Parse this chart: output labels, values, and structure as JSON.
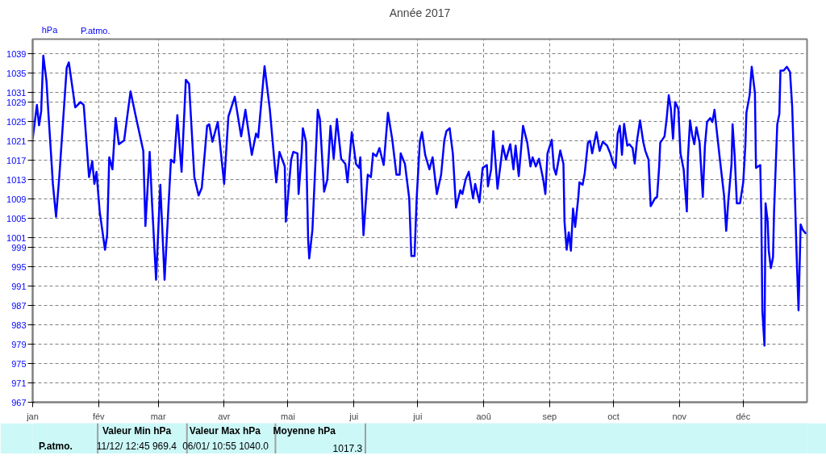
{
  "chart_data": {
    "type": "line",
    "title": "Année 2017",
    "ylabel": "hPa",
    "x": [
      "2017-01-01",
      "2017-01-03",
      "2017-01-04",
      "2017-01-05",
      "2017-01-06",
      "2017-01-07T12:00",
      "2017-01-08T12:00",
      "2017-01-10",
      "2017-01-10T12:00",
      "2017-01-12",
      "2017-01-13T12:00",
      "2017-01-17",
      "2017-01-18",
      "2017-01-21",
      "2017-01-23T12:00",
      "2017-01-25",
      "2017-01-27T12:00",
      "2017-01-29",
      "2017-01-30",
      "2017-01-31",
      "2017-02-01T12:00",
      "2017-02-04",
      "2017-02-05",
      "2017-02-06",
      "2017-02-07T12:00",
      "2017-02-09",
      "2017-02-10T12:00",
      "2017-02-13",
      "2017-02-16",
      "2017-02-18T12:00",
      "2017-02-22",
      "2017-02-23",
      "2017-02-25",
      "2017-02-26",
      "2017-02-28",
      "2017-03-02",
      "2017-03-04",
      "2017-03-07",
      "2017-03-08T12:00",
      "2017-03-10",
      "2017-03-12",
      "2017-03-14",
      "2017-03-15T12:00",
      "2017-03-18",
      "2017-03-20",
      "2017-03-21T12:00",
      "2017-03-24",
      "2017-03-25",
      "2017-03-26T12:00",
      "2017-03-29",
      "2017-04-01",
      "2017-04-03",
      "2017-04-06",
      "2017-04-09",
      "2017-04-11",
      "2017-04-14",
      "2017-04-16",
      "2017-04-17",
      "2017-04-20",
      "2017-04-22T12:00",
      "2017-04-25T12:00",
      "2017-04-27",
      "2017-04-29T12:00",
      "2017-04-30",
      "2017-05-02T12:00",
      "2017-05-03T12:00",
      "2017-05-05T12:00",
      "2017-05-06",
      "2017-05-07T12:00",
      "2017-05-08",
      "2017-05-09T12:00",
      "2017-05-10T12:00",
      "2017-05-11",
      "2017-05-12T12:00",
      "2017-05-14",
      "2017-05-15",
      "2017-05-16",
      "2017-05-18",
      "2017-05-19T12:00",
      "2017-05-21",
      "2017-05-22T12:00",
      "2017-05-24",
      "2017-05-26",
      "2017-05-28",
      "2017-05-29",
      "2017-05-31",
      "2017-06-02",
      "2017-06-03T12:00",
      "2017-06-04",
      "2017-06-05T12:00",
      "2017-06-07T12:00",
      "2017-06-09",
      "2017-06-10",
      "2017-06-11T12:00",
      "2017-06-13",
      "2017-06-15",
      "2017-06-17",
      "2017-06-19",
      "2017-06-21",
      "2017-06-22T12:00",
      "2017-06-23",
      "2017-06-25",
      "2017-06-27",
      "2017-06-28",
      "2017-06-29T12:00",
      "2017-06-30T12:00",
      "2017-07-02",
      "2017-07-03",
      "2017-07-04T12:00",
      "2017-07-06T12:00",
      "2017-07-08",
      "2017-07-10",
      "2017-07-12",
      "2017-07-13T12:00",
      "2017-07-14T12:00",
      "2017-07-16",
      "2017-07-17T12:00",
      "2017-07-19",
      "2017-07-21",
      "2017-07-22",
      "2017-07-23T12:00",
      "2017-07-25",
      "2017-07-27",
      "2017-07-28",
      "2017-07-30",
      "2017-07-31T12:00",
      "2017-08-02T12:00",
      "2017-08-03",
      "2017-08-04T12:00",
      "2017-08-05T12:00",
      "2017-08-07T12:00",
      "2017-08-10",
      "2017-08-11T12:00",
      "2017-08-13T12:00",
      "2017-08-15",
      "2017-08-16",
      "2017-08-17T12:00",
      "2017-08-19T12:00",
      "2017-08-21T12:00",
      "2017-08-23",
      "2017-08-24",
      "2017-08-25T12:00",
      "2017-08-27",
      "2017-08-29",
      "2017-08-30",
      "2017-08-31",
      "2017-09-02",
      "2017-09-03",
      "2017-09-04",
      "2017-09-06",
      "2017-09-07T12:00",
      "2017-09-08",
      "2017-09-09",
      "2017-09-10",
      "2017-09-11",
      "2017-09-12",
      "2017-09-13",
      "2017-09-14T12:00",
      "2017-09-15",
      "2017-09-16T12:00",
      "2017-09-17T12:00",
      "2017-09-19",
      "2017-09-20",
      "2017-09-21",
      "2017-09-22T12:00",
      "2017-09-23",
      "2017-09-24T12:00",
      "2017-09-26",
      "2017-09-28",
      "2017-09-29T12:00",
      "2017-10-01",
      "2017-10-02",
      "2017-10-03",
      "2017-10-04",
      "2017-10-05",
      "2017-10-06",
      "2017-10-07T12:00",
      "2017-10-08T12:00",
      "2017-10-10",
      "2017-10-11",
      "2017-10-12",
      "2017-10-13T12:00",
      "2017-10-15",
      "2017-10-16",
      "2017-10-17T12:00",
      "2017-10-18T12:00",
      "2017-10-20T12:00",
      "2017-10-21T12:00",
      "2017-10-22T12:00",
      "2017-10-23",
      "2017-10-25",
      "2017-10-26",
      "2017-10-27",
      "2017-10-28",
      "2017-10-29",
      "2017-10-30",
      "2017-10-31T12:00",
      "2017-11-01T12:00",
      "2017-11-03",
      "2017-11-04T12:00",
      "2017-11-05",
      "2017-11-06",
      "2017-11-07",
      "2017-11-08",
      "2017-11-09",
      "2017-11-10T12:00",
      "2017-11-12",
      "2017-11-13",
      "2017-11-14",
      "2017-11-15T12:00",
      "2017-11-16T12:00",
      "2017-11-17T12:00",
      "2017-11-18T12:00",
      "2017-11-20",
      "2017-11-22",
      "2017-11-23",
      "2017-11-24",
      "2017-11-25T12:00",
      "2017-11-26",
      "2017-11-27",
      "2017-11-28",
      "2017-11-29T12:00",
      "2017-12-01",
      "2017-12-02",
      "2017-12-02T12:00",
      "2017-12-04",
      "2017-12-05",
      "2017-12-06T12:00",
      "2017-12-07",
      "2017-12-09",
      "2017-12-09T12:00",
      "2017-12-10",
      "2017-12-11",
      "2017-12-11T12:00",
      "2017-12-12T12:00",
      "2017-12-13",
      "2017-12-14",
      "2017-12-15",
      "2017-12-15T12:00",
      "2017-12-17",
      "2017-12-18",
      "2017-12-18T12:00",
      "2017-12-20",
      "2017-12-21T12:00",
      "2017-12-23",
      "2017-12-24",
      "2017-12-25",
      "2017-12-26",
      "2017-12-27",
      "2017-12-28",
      "2017-12-29",
      "2017-12-30T12:00"
    ],
    "series": [
      {
        "name": "P.atmo.",
        "color": "#0000ff",
        "values": [
          1021.4,
          1028.4,
          1024.2,
          1027.1,
          1038.6,
          1033.3,
          1026,
          1015.7,
          1012.1,
          1005.3,
          1013.5,
          1036.1,
          1037.2,
          1027.9,
          1029,
          1028.4,
          1013.5,
          1016.8,
          1012.1,
          1014.6,
          1006.4,
          998.5,
          1001.5,
          1017.6,
          1015.1,
          1025.7,
          1020.3,
          1021.1,
          1031.2,
          1026,
          1018.9,
          1003.4,
          1018.7,
          1009.1,
          992.3,
          1011.9,
          992.3,
          1017.1,
          1016.5,
          1026.3,
          1014.6,
          1033.6,
          1032.8,
          1013.5,
          1009.7,
          1011.3,
          1024.1,
          1024.4,
          1020.8,
          1024.9,
          1012.1,
          1026,
          1030.1,
          1021.9,
          1027.4,
          1018.1,
          1022.5,
          1021.7,
          1036.4,
          1027.4,
          1012.4,
          1018.7,
          1015.7,
          1004.3,
          1017.1,
          1018.7,
          1018.4,
          1010,
          1018.7,
          1023.6,
          1020.8,
          1000.4,
          996.7,
          1002.6,
          1017.3,
          1027.4,
          1025.5,
          1010.5,
          1013,
          1024.1,
          1017.3,
          1025.5,
          1017.3,
          1016.2,
          1012.4,
          1022.8,
          1016.2,
          1015.4,
          1017.6,
          1001.5,
          1014,
          1013.5,
          1018.4,
          1017.8,
          1019.5,
          1016,
          1026.8,
          1021.4,
          1014,
          1014,
          1018.4,
          1016.2,
          1009.1,
          997.2,
          997.2,
          1009.1,
          1020.8,
          1022.8,
          1018.1,
          1015.1,
          1017.6,
          1010,
          1014,
          1021.1,
          1023,
          1023.6,
          1018.4,
          1007.2,
          1010.8,
          1010,
          1013,
          1014.6,
          1009.1,
          1012.1,
          1008.3,
          1015.4,
          1016,
          1011.6,
          1015.1,
          1023,
          1011.1,
          1020,
          1017.1,
          1020.3,
          1015.1,
          1020,
          1013.7,
          1024.1,
          1020.6,
          1015.7,
          1017.6,
          1015.7,
          1017.3,
          1013,
          1010,
          1018.4,
          1021.2,
          1015.4,
          1014,
          1019,
          1016.2,
          1004.3,
          998.5,
          1002.1,
          998.3,
          1007,
          1003.2,
          1009.4,
          1012.4,
          1011.9,
          1014.3,
          1020.6,
          1021,
          1018.4,
          1021.7,
          1022.8,
          1018.9,
          1020.8,
          1020,
          1018.4,
          1016.2,
          1015.4,
          1022.5,
          1024.1,
          1018.1,
          1024.5,
          1020,
          1020.3,
          1019.5,
          1016.3,
          1020.8,
          1025.2,
          1020.8,
          1018.9,
          1017.1,
          1007.5,
          1009.1,
          1009.4,
          1015.7,
          1020.6,
          1021.9,
          1025.5,
          1030.4,
          1027.6,
          1021.4,
          1029,
          1027.6,
          1018.4,
          1015.1,
          1006.4,
          1017.3,
          1025.2,
          1022.2,
          1020.3,
          1023.8,
          1020.6,
          1009.4,
          1020,
          1024.9,
          1025.7,
          1024.9,
          1027.4,
          1023.3,
          1017.3,
          1009.7,
          1002.4,
          1008.6,
          1016.2,
          1024.4,
          1017.8,
          1008.1,
          1008.1,
          1012.4,
          1020,
          1026.8,
          1030.4,
          1036.3,
          1030.9,
          1015.4,
          1016,
          1005.9,
          985.8,
          978.7,
          1008.1,
          1004.3,
          998.3,
          994.7,
          996.9,
          1006.4,
          1024.4,
          1026.6,
          1035.5,
          1035.5,
          1036.3,
          1035.2,
          1028.2,
          1014.6,
          998.8,
          986,
          1003.7,
          1002.6,
          1001.8
        ]
      }
    ],
    "xlim": [
      "2017-01-01",
      "2017-12-31"
    ],
    "xticks": [
      {
        "value": "2017-01-01",
        "label": "jan"
      },
      {
        "value": "2017-02-01",
        "label": "fév"
      },
      {
        "value": "2017-03-01",
        "label": "mar"
      },
      {
        "value": "2017-04-01",
        "label": "avr"
      },
      {
        "value": "2017-05-01",
        "label": "mai"
      },
      {
        "value": "2017-06-01",
        "label": "jui"
      },
      {
        "value": "2017-07-01",
        "label": "jui"
      },
      {
        "value": "2017-08-01",
        "label": "aoû"
      },
      {
        "value": "2017-09-01",
        "label": "sep"
      },
      {
        "value": "2017-10-01",
        "label": "oct"
      },
      {
        "value": "2017-11-01",
        "label": "nov"
      },
      {
        "value": "2017-12-01",
        "label": "déc"
      }
    ],
    "ylim": [
      967,
      1042
    ],
    "yticks": [
      967,
      971,
      975,
      979,
      983,
      987,
      991,
      995,
      999,
      1001,
      1005,
      1009,
      1013,
      1017,
      1021,
      1025,
      1029,
      1031,
      1035,
      1039
    ],
    "grid": true,
    "legend": "top left",
    "marker": "none",
    "line_style": "solid",
    "annotations": [
      "P.atmo.",
      "Valeur Min      hPa",
      "11/12/  12:45   969.4",
      "Valeur Max      hPa",
      "06/01/  10:55  1040.0",
      "Moyenne           hPa",
      "1017.3"
    ]
  }
}
